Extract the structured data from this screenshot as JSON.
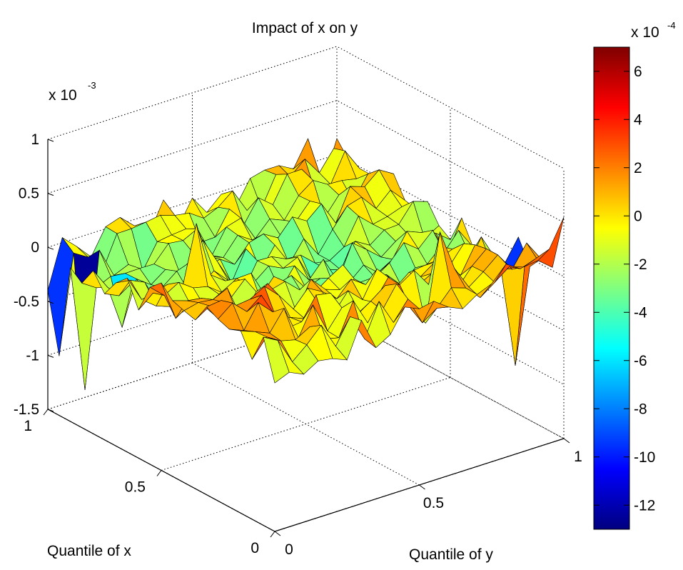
{
  "chart_data": {
    "type": "surface",
    "title": "Impact of x on y",
    "xlabel": "Quantile of x",
    "ylabel": "Quantile of y",
    "z_multiplier_label": {
      "base": "x 10",
      "exponent": "-3"
    },
    "colorbar_multiplier_label": {
      "base": "x 10",
      "exponent": "-4"
    },
    "x_axis": {
      "range": [
        0,
        1
      ],
      "ticks": [
        "0",
        "0.5",
        "1"
      ]
    },
    "y_axis": {
      "range": [
        0,
        1
      ],
      "ticks": [
        "0",
        "0.5",
        "1"
      ]
    },
    "z_axis": {
      "range": [
        -1.5,
        1
      ],
      "ticks": [
        "1",
        "0.5",
        "0",
        "-0.5",
        "-1",
        "-1.5"
      ]
    },
    "colorbar": {
      "range": [
        -13,
        7
      ],
      "ticks": [
        "6",
        "4",
        "2",
        "0",
        "-2",
        "-4",
        "-6",
        "-8",
        "-10",
        "-12"
      ],
      "colormap": "jet"
    },
    "grid": true,
    "surface": {
      "x_values": [
        0,
        0.05,
        0.1,
        0.15,
        0.2,
        0.25,
        0.3,
        0.35,
        0.4,
        0.45,
        0.5,
        0.55,
        0.6,
        0.65,
        0.7,
        0.75,
        0.8,
        0.85,
        0.9,
        0.95,
        1
      ],
      "y_values": [
        0,
        0.05,
        0.1,
        0.15,
        0.2,
        0.25,
        0.3,
        0.35,
        0.4,
        0.45,
        0.5,
        0.55,
        0.6,
        0.65,
        0.7,
        0.75,
        0.8,
        0.85,
        0.9,
        0.95,
        1
      ],
      "z_unit_scale": "1e-3",
      "notes": "Surface is mostly near zero (about -0.4 to 0.2 x 10^-3) with sharp spikes: deep minimum near -1.25 x 10^-3 around x≈0.9, y≈0.05; spikes near -0.9 around x≈0.95, y≈0.0; peaks near +0.6 x 10^-4 scale at upper y edge."
    }
  }
}
